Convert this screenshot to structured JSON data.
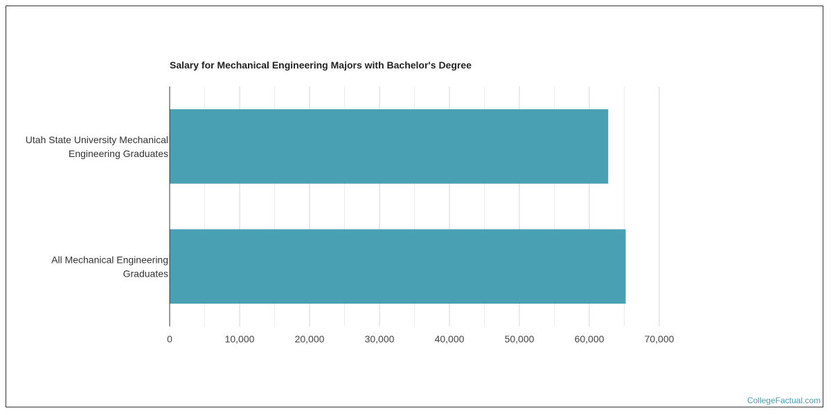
{
  "chart_data": {
    "type": "bar",
    "orientation": "horizontal",
    "title": "Salary for Mechanical Engineering Majors with Bachelor's Degree",
    "categories": [
      [
        "Utah State University Mechanical",
        "Engineering Graduates"
      ],
      [
        "All Mechanical Engineering",
        "Graduates"
      ]
    ],
    "values": [
      62700,
      65200
    ],
    "xlim": [
      0,
      70000
    ],
    "xticks": [
      "0",
      "10,000",
      "20,000",
      "30,000",
      "40,000",
      "50,000",
      "60,000",
      "70,000"
    ],
    "xtick_values": [
      0,
      10000,
      20000,
      30000,
      40000,
      50000,
      60000,
      70000
    ],
    "grid": true,
    "bar_color": "#4aa0b3"
  },
  "credit": "CollegeFactual.com"
}
